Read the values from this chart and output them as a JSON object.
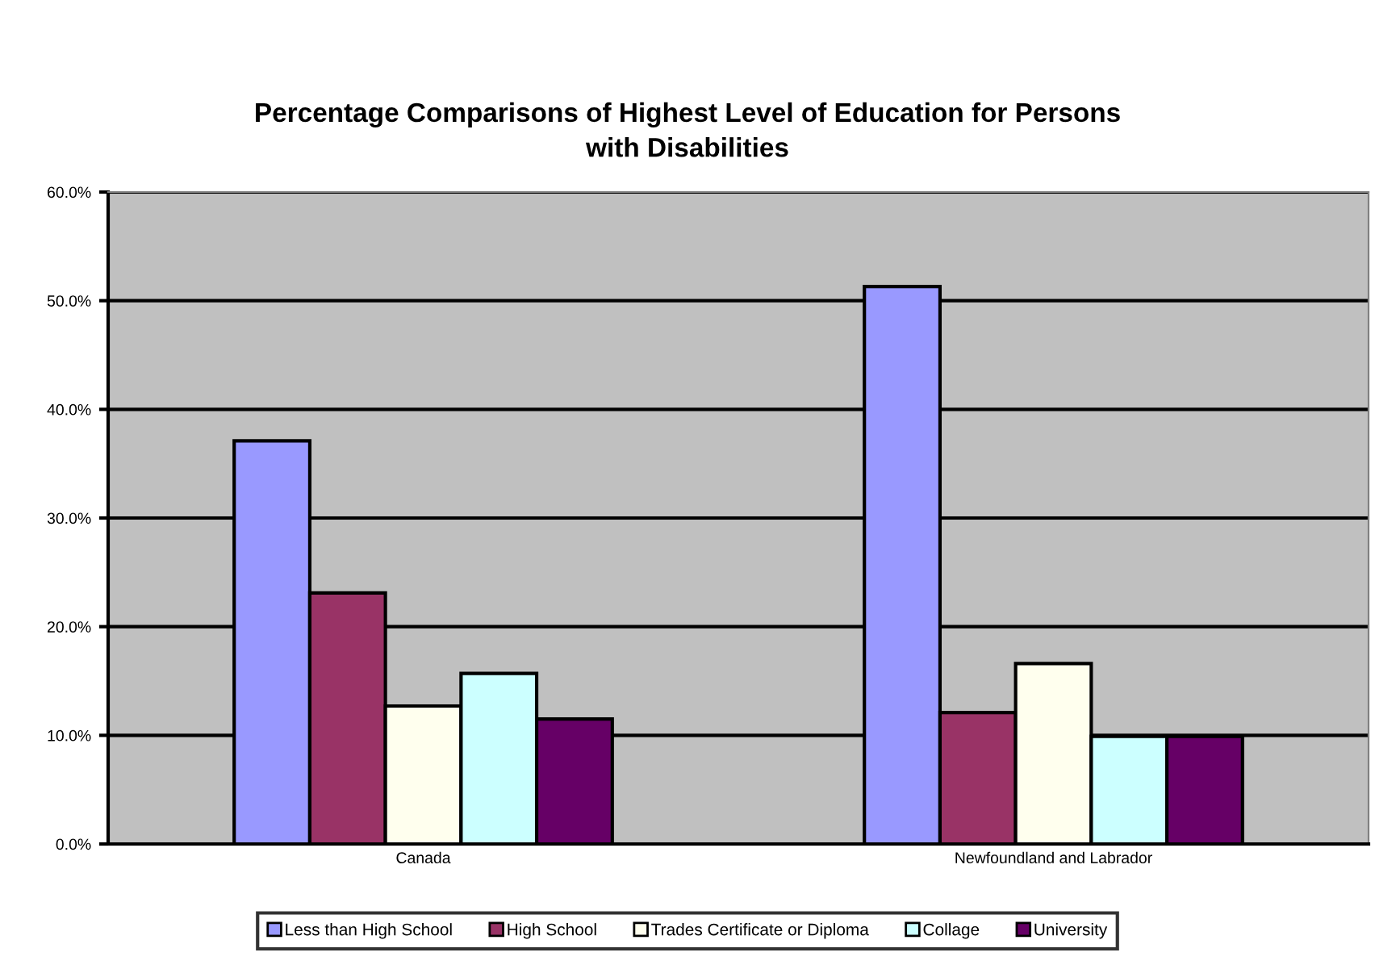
{
  "chart_data": {
    "type": "bar",
    "title": "Percentage Comparisons of Highest Level of Education for Persons\nwith Disabilities",
    "categories": [
      "Canada",
      "Newfoundland and Labrador"
    ],
    "series": [
      {
        "name": "Less than High School",
        "color": "#9999ff",
        "values": [
          37.1,
          51.3
        ]
      },
      {
        "name": "High School",
        "color": "#993366",
        "values": [
          23.1,
          12.1
        ]
      },
      {
        "name": "Trades Certificate or Diploma",
        "color": "#ffffee",
        "values": [
          12.7,
          16.6
        ]
      },
      {
        "name": "Collage",
        "color": "#ccffff",
        "values": [
          15.7,
          9.9
        ]
      },
      {
        "name": "University",
        "color": "#660066",
        "values": [
          11.5,
          9.9
        ]
      }
    ],
    "ylim": [
      0,
      60
    ],
    "yticks": [
      {
        "value": 0,
        "label": "0.0%"
      },
      {
        "value": 10,
        "label": "10.0%"
      },
      {
        "value": 20,
        "label": "20.0%"
      },
      {
        "value": 30,
        "label": "30.0%"
      },
      {
        "value": 40,
        "label": "40.0%"
      },
      {
        "value": 50,
        "label": "50.0%"
      },
      {
        "value": 60,
        "label": "60.0%"
      }
    ],
    "grid": "y",
    "legend": "bottom"
  }
}
